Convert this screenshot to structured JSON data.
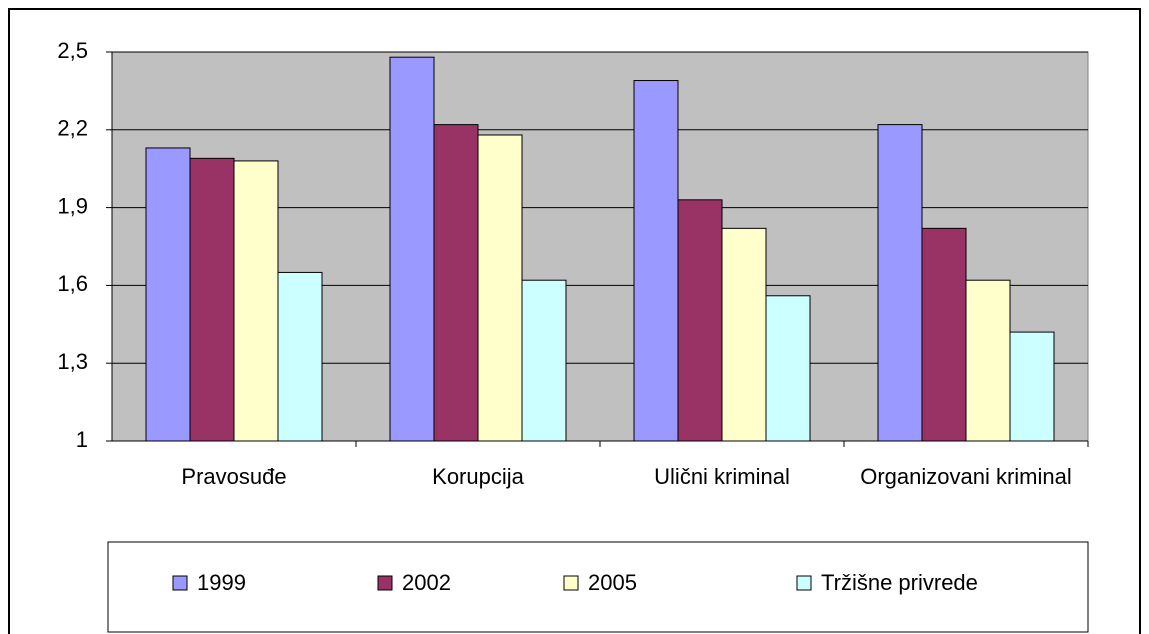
{
  "chart_data": {
    "type": "bar",
    "categories": [
      "Pravosuđe",
      "Korupcija",
      "Ulični kriminal",
      "Organizovani kriminal"
    ],
    "series": [
      {
        "name": "1999",
        "color": "#9999ff",
        "values": [
          2.13,
          2.48,
          2.39,
          2.22
        ]
      },
      {
        "name": "2002",
        "color": "#993366",
        "values": [
          2.09,
          2.22,
          1.93,
          1.82
        ]
      },
      {
        "name": "2005",
        "color": "#ffffcc",
        "values": [
          2.08,
          2.18,
          1.82,
          1.62
        ]
      },
      {
        "name": "Tržišne privrede",
        "color": "#ccffff",
        "values": [
          1.65,
          1.62,
          1.56,
          1.42
        ]
      }
    ],
    "ylim": [
      1,
      2.5
    ],
    "yticks": [
      1,
      {
        "value": 1.3,
        "label": "1,3"
      },
      {
        "value": 1.6,
        "label": "1,6"
      },
      {
        "value": 1.9,
        "label": "1,9"
      },
      {
        "value": 2.2,
        "label": "2,2"
      },
      {
        "value": 2.5,
        "label": "2,5"
      }
    ],
    "grid": true,
    "plot_background": "#c0c0c0",
    "legend": "bottom"
  }
}
